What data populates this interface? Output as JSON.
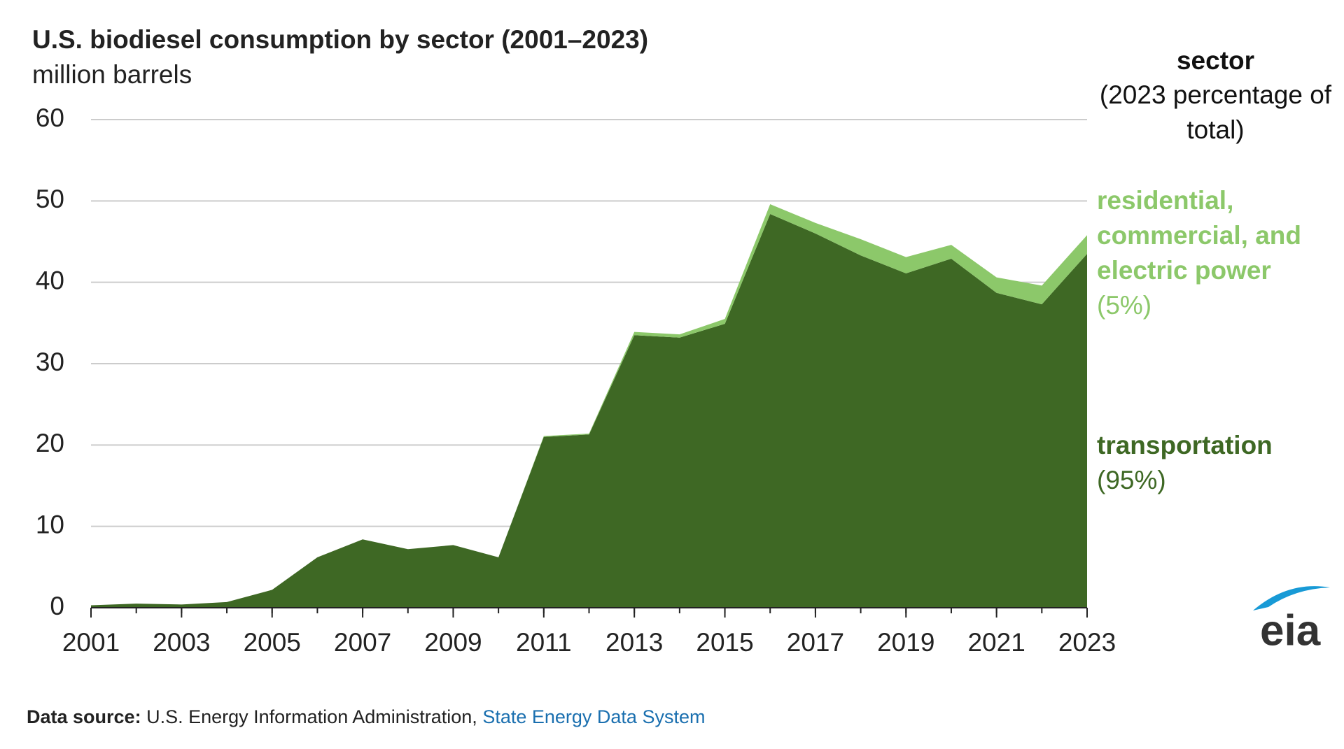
{
  "chart_data": {
    "type": "stacked_area",
    "title": "U.S. biodiesel consumption by sector (2001–2023)",
    "subtitle": "million barrels",
    "x": [
      2001,
      2002,
      2003,
      2004,
      2005,
      2006,
      2007,
      2008,
      2009,
      2010,
      2011,
      2012,
      2013,
      2014,
      2015,
      2016,
      2017,
      2018,
      2019,
      2020,
      2021,
      2022,
      2023
    ],
    "xlim": [
      2001,
      2023
    ],
    "xticks": [
      2001,
      2003,
      2005,
      2007,
      2009,
      2011,
      2013,
      2015,
      2017,
      2019,
      2021,
      2023
    ],
    "ylim": [
      0,
      60
    ],
    "yticks": [
      0,
      10,
      20,
      30,
      40,
      50,
      60
    ],
    "grid": true,
    "legend_title": "sector",
    "legend_subtitle": "(2023 percentage of total)",
    "series": [
      {
        "name": "transportation",
        "share": "(95%)",
        "color": "#3e6824",
        "values": [
          0.3,
          0.5,
          0.4,
          0.7,
          2.2,
          6.2,
          8.4,
          7.2,
          7.7,
          6.2,
          21.0,
          21.3,
          33.5,
          33.2,
          34.9,
          48.4,
          46.0,
          43.3,
          41.1,
          42.9,
          38.7,
          37.3,
          43.5
        ]
      },
      {
        "name": "residential, commercial, and electric power",
        "share": "(5%)",
        "color": "#8cc86a",
        "values": [
          0,
          0,
          0,
          0,
          0,
          0,
          0,
          0,
          0,
          0,
          0.1,
          0.1,
          0.4,
          0.4,
          0.6,
          1.2,
          1.3,
          2.0,
          2.0,
          1.7,
          1.9,
          2.3,
          2.3
        ]
      }
    ]
  },
  "source": {
    "label": "Data source:",
    "text": "U.S. Energy Information Administration,",
    "link": "State Energy Data System"
  },
  "logo": "eia"
}
